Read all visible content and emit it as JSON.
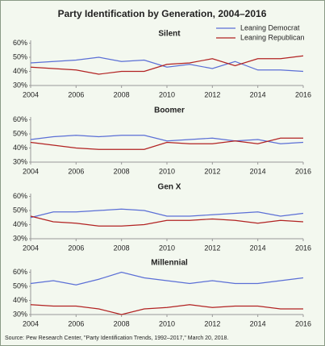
{
  "title": "Party Identification by Generation, 2004–2016",
  "source": "Source: Pew Research Center, \"Party Identification Trends, 1992–2017,\" March 20, 2018.",
  "chart_data": [
    {
      "type": "line",
      "title": "Silent",
      "legend": "upper right",
      "x": [
        2004,
        2005,
        2006,
        2007,
        2008,
        2009,
        2010,
        2011,
        2012,
        2013,
        2014,
        2015,
        2016
      ],
      "xlim": [
        2004,
        2016
      ],
      "xticks": [
        2004,
        2006,
        2008,
        2010,
        2012,
        2014,
        2016
      ],
      "ylim": [
        30,
        62
      ],
      "yticks": [
        {
          "value": 30,
          "label": "30%"
        },
        {
          "value": 40,
          "label": "40%"
        },
        {
          "value": 50,
          "label": "50%"
        },
        {
          "value": 60,
          "label": "60%"
        }
      ],
      "series": [
        {
          "name": "Leaning Democrat",
          "color": "#5b6fd6",
          "values": [
            46,
            47,
            48,
            50,
            47,
            48,
            43,
            45,
            42,
            47,
            41,
            41,
            40
          ]
        },
        {
          "name": "Leaning Republican",
          "color": "#b22222",
          "values": [
            43,
            42,
            41,
            38,
            40,
            40,
            45,
            46,
            49,
            44,
            49,
            49,
            51
          ]
        }
      ]
    },
    {
      "type": "line",
      "title": "Boomer",
      "x": [
        2004,
        2005,
        2006,
        2007,
        2008,
        2009,
        2010,
        2011,
        2012,
        2013,
        2014,
        2015,
        2016
      ],
      "xlim": [
        2004,
        2016
      ],
      "xticks": [
        2004,
        2006,
        2008,
        2010,
        2012,
        2014,
        2016
      ],
      "ylim": [
        30,
        62
      ],
      "yticks": [
        {
          "value": 30,
          "label": "30%"
        },
        {
          "value": 40,
          "label": "40%"
        },
        {
          "value": 50,
          "label": "50%"
        },
        {
          "value": 60,
          "label": "60%"
        }
      ],
      "series": [
        {
          "color": "#5b6fd6",
          "values": [
            46,
            48,
            49,
            48,
            49,
            49,
            45,
            46,
            47,
            45,
            46,
            43,
            44
          ]
        },
        {
          "color": "#b22222",
          "values": [
            44,
            42,
            40,
            39,
            39,
            39,
            44,
            43,
            43,
            45,
            43,
            47,
            47
          ]
        }
      ]
    },
    {
      "type": "line",
      "title": "Gen X",
      "x": [
        2004,
        2005,
        2006,
        2007,
        2008,
        2009,
        2010,
        2011,
        2012,
        2013,
        2014,
        2015,
        2016
      ],
      "xlim": [
        2004,
        2016
      ],
      "xticks": [
        2004,
        2006,
        2008,
        2010,
        2012,
        2014,
        2016
      ],
      "ylim": [
        30,
        62
      ],
      "yticks": [
        {
          "value": 30,
          "label": "30%"
        },
        {
          "value": 40,
          "label": "40%"
        },
        {
          "value": 50,
          "label": "50%"
        },
        {
          "value": 60,
          "label": "60%"
        }
      ],
      "series": [
        {
          "color": "#5b6fd6",
          "values": [
            45,
            49,
            49,
            50,
            51,
            50,
            46,
            46,
            47,
            48,
            49,
            46,
            48
          ]
        },
        {
          "color": "#b22222",
          "values": [
            46,
            42,
            41,
            39,
            39,
            40,
            43,
            43,
            44,
            43,
            41,
            43,
            42
          ]
        }
      ]
    },
    {
      "type": "line",
      "title": "Millennial",
      "x": [
        2004,
        2005,
        2006,
        2007,
        2008,
        2009,
        2010,
        2011,
        2012,
        2013,
        2014,
        2015,
        2016
      ],
      "xlim": [
        2004,
        2016
      ],
      "xticks": [
        2004,
        2006,
        2008,
        2010,
        2012,
        2014,
        2016
      ],
      "ylim": [
        30,
        62
      ],
      "yticks": [
        {
          "value": 30,
          "label": "30%"
        },
        {
          "value": 40,
          "label": "40%"
        },
        {
          "value": 50,
          "label": "50%"
        },
        {
          "value": 60,
          "label": "60%"
        }
      ],
      "series": [
        {
          "color": "#5b6fd6",
          "values": [
            52,
            54,
            51,
            55,
            60,
            56,
            54,
            52,
            54,
            52,
            52,
            54,
            56
          ]
        },
        {
          "color": "#b22222",
          "values": [
            37,
            36,
            36,
            34,
            30,
            34,
            35,
            37,
            35,
            36,
            36,
            34,
            34
          ]
        }
      ]
    }
  ]
}
